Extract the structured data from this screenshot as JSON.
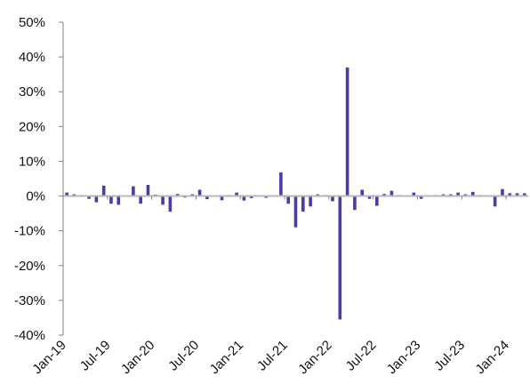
{
  "colors": {
    "bar": "#4b3aa8",
    "axis": "#808080",
    "zero_line": "#b8b8b8",
    "text": "#111111",
    "background": "#ffffff"
  },
  "chart_data": {
    "type": "bar",
    "title": "",
    "xlabel": "",
    "ylabel": "",
    "ylim": [
      -40,
      50
    ],
    "y_ticks": [
      50,
      40,
      30,
      20,
      10,
      0,
      -10,
      -20,
      -30,
      -40
    ],
    "y_tick_labels": [
      "50%",
      "40%",
      "30%",
      "20%",
      "10%",
      "0%",
      "-10%",
      "-20%",
      "-30%",
      "-40%"
    ],
    "x_tick_labels": [
      "Jan-19",
      "Jul-19",
      "Jan-20",
      "Jul-20",
      "Jan-21",
      "Jul-21",
      "Jan-22",
      "Jul-22",
      "Jan-23",
      "Jul-23",
      "Jan-24"
    ],
    "x_tick_every": 6,
    "grid": false,
    "legend": "none",
    "categories": [
      "Jan-19",
      "Feb-19",
      "Mar-19",
      "Apr-19",
      "May-19",
      "Jun-19",
      "Jul-19",
      "Aug-19",
      "Sep-19",
      "Oct-19",
      "Nov-19",
      "Dec-19",
      "Jan-20",
      "Feb-20",
      "Mar-20",
      "Apr-20",
      "May-20",
      "Jun-20",
      "Jul-20",
      "Aug-20",
      "Sep-20",
      "Oct-20",
      "Nov-20",
      "Dec-20",
      "Jan-21",
      "Feb-21",
      "Mar-21",
      "Apr-21",
      "May-21",
      "Jun-21",
      "Jul-21",
      "Aug-21",
      "Sep-21",
      "Oct-21",
      "Nov-21",
      "Dec-21",
      "Jan-22",
      "Feb-22",
      "Mar-22",
      "Apr-22",
      "May-22",
      "Jun-22",
      "Jul-22",
      "Aug-22",
      "Sep-22",
      "Oct-22",
      "Nov-22",
      "Dec-22",
      "Jan-23",
      "Feb-23",
      "Mar-23",
      "Apr-23",
      "May-23",
      "Jun-23",
      "Jul-23",
      "Aug-23",
      "Sep-23",
      "Oct-23",
      "Nov-23",
      "Dec-23",
      "Jan-24",
      "Feb-24",
      "Mar-24"
    ],
    "values": [
      1.0,
      0.5,
      0.2,
      -0.8,
      -1.8,
      3.0,
      -2.2,
      -2.5,
      0.0,
      2.8,
      -2.2,
      3.2,
      0.4,
      -2.5,
      -4.5,
      0.6,
      -0.4,
      0.5,
      1.8,
      -0.9,
      0.0,
      -1.2,
      0.3,
      1.0,
      -1.3,
      -0.6,
      0.0,
      -0.5,
      0.0,
      6.8,
      -2.2,
      -9.0,
      -4.5,
      -3.0,
      0.5,
      0.3,
      -1.5,
      -35.5,
      37.0,
      -4.0,
      1.8,
      -0.8,
      -2.8,
      0.6,
      1.5,
      0.3,
      0.0,
      1.0,
      -0.8,
      0.0,
      0.3,
      0.5,
      0.5,
      1.0,
      0.5,
      1.2,
      0.3,
      0.0,
      -3.0,
      2.0,
      0.8,
      0.8,
      0.8
    ]
  }
}
